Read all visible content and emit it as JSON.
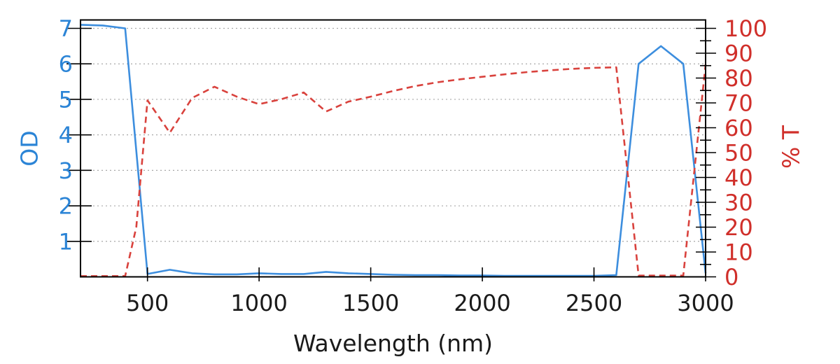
{
  "chart_data": {
    "type": "line",
    "title": "",
    "xlabel": "Wavelength (nm)",
    "xlim": [
      200,
      3000
    ],
    "x_ticks": [
      500,
      1000,
      1500,
      2000,
      2500,
      3000
    ],
    "grid": {
      "orientation": "horizontal",
      "style": "dotted",
      "at_left_ticks": true
    },
    "legend": "none",
    "left_axis": {
      "label": "OD",
      "range": [
        0,
        7.1
      ],
      "ticks": [
        1,
        2,
        3,
        4,
        5,
        6,
        7
      ],
      "text_color": "#2b84d6"
    },
    "right_axis": {
      "label": "% T",
      "range": [
        0,
        100
      ],
      "ticks": [
        0,
        10,
        20,
        30,
        40,
        50,
        60,
        70,
        80,
        90,
        100
      ],
      "minor_tick_step": 5,
      "text_color": "#d02f2a"
    },
    "colors": {
      "od_line": "#3d8ede",
      "transmission_line": "#d9423d",
      "axis_text": "#1a1a1a",
      "grid_gray": "#a8a8a8"
    },
    "series": [
      {
        "name": "OD",
        "axis": "left",
        "style": "solid",
        "color": "#3d8ede",
        "x": [
          200,
          300,
          400,
          500,
          600,
          700,
          800,
          900,
          1000,
          1100,
          1200,
          1300,
          1400,
          1500,
          1600,
          1700,
          1800,
          1900,
          2000,
          2100,
          2200,
          2300,
          2400,
          2500,
          2600,
          2700,
          2800,
          2900,
          3000
        ],
        "values": [
          7.1,
          7.08,
          7.0,
          0.08,
          0.2,
          0.1,
          0.07,
          0.07,
          0.1,
          0.08,
          0.08,
          0.14,
          0.1,
          0.08,
          0.06,
          0.05,
          0.05,
          0.04,
          0.04,
          0.03,
          0.03,
          0.03,
          0.03,
          0.03,
          0.05,
          6.0,
          6.5,
          6.0,
          0.1
        ]
      },
      {
        "name": "% T",
        "axis": "right",
        "style": "dashed",
        "color": "#d9423d",
        "x": [
          200,
          300,
          400,
          450,
          500,
          600,
          700,
          800,
          900,
          1000,
          1100,
          1200,
          1300,
          1400,
          1500,
          1600,
          1700,
          1800,
          1900,
          2000,
          2100,
          2200,
          2300,
          2400,
          2500,
          2600,
          2700,
          2800,
          2900,
          3000
        ],
        "values": [
          0.3,
          0.3,
          0.3,
          20,
          71,
          58,
          72,
          76.5,
          72.5,
          69.5,
          71.5,
          74.2,
          66.5,
          70.5,
          72.5,
          74.8,
          76.8,
          78.3,
          79.5,
          80.5,
          81.5,
          82.4,
          83.1,
          83.7,
          84.1,
          84.3,
          0.5,
          0.5,
          0.5,
          85.5
        ]
      }
    ]
  }
}
